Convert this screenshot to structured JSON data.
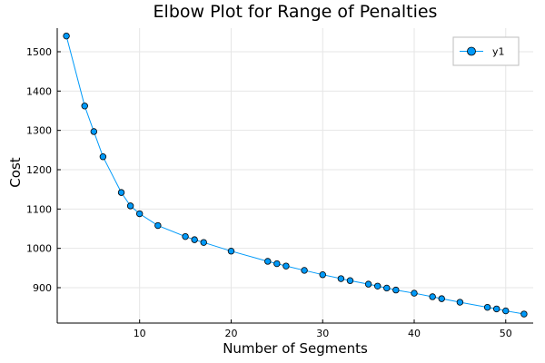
{
  "chart_data": {
    "type": "line",
    "title": "Elbow Plot for Range of Penalties",
    "xlabel": "Number of Segments",
    "ylabel": "Cost",
    "xlim": [
      1,
      53
    ],
    "ylim": [
      810,
      1560
    ],
    "xticks": [
      10,
      20,
      30,
      40,
      50
    ],
    "yticks": [
      900,
      1000,
      1100,
      1200,
      1300,
      1400,
      1500
    ],
    "grid": true,
    "legend_position": "top-right",
    "series": [
      {
        "name": "y1",
        "color": "#009AF9",
        "marker": "circle",
        "x": [
          2,
          4,
          5,
          6,
          8,
          9,
          10,
          12,
          15,
          16,
          17,
          20,
          24,
          25,
          26,
          28,
          30,
          32,
          33,
          35,
          36,
          37,
          38,
          40,
          42,
          43,
          45,
          48,
          49,
          50,
          52
        ],
        "y": [
          1540,
          1362,
          1297,
          1233,
          1142,
          1108,
          1088,
          1058,
          1030,
          1022,
          1015,
          993,
          967,
          961,
          955,
          944,
          933,
          923,
          918,
          909,
          904,
          899,
          894,
          886,
          877,
          872,
          863,
          850,
          846,
          841,
          833
        ]
      }
    ]
  }
}
